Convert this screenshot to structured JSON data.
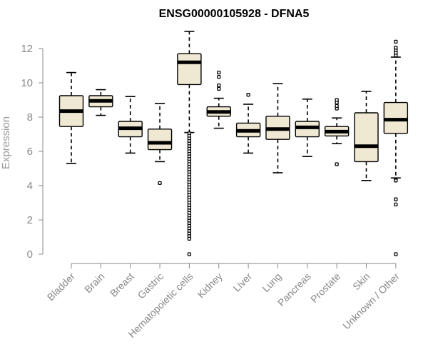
{
  "chart_data": {
    "type": "box",
    "title": "ENSG00000105928 - DFNA5",
    "xlabel": "",
    "ylabel": "Expression",
    "ylim": [
      0,
      12
    ],
    "yticks": [
      0,
      2,
      4,
      6,
      8,
      10,
      12
    ],
    "grid": false,
    "colors": {
      "box_fill": "#efe8d2",
      "box_stroke": "#000000",
      "axis": "#888888"
    },
    "categories": [
      "Bladder",
      "Brain",
      "Breast",
      "Gastric",
      "Hematopoietic cells",
      "Kidney",
      "Liver",
      "Lung",
      "Pancreas",
      "Prostate",
      "Skin",
      "Unknown / Other"
    ],
    "boxes": [
      {
        "name": "Bladder",
        "whisker_low": 5.3,
        "q1": 7.45,
        "median": 8.35,
        "q3": 9.25,
        "whisker_high": 10.6,
        "outliers": []
      },
      {
        "name": "Brain",
        "whisker_low": 8.1,
        "q1": 8.6,
        "median": 8.95,
        "q3": 9.25,
        "whisker_high": 9.6,
        "outliers": []
      },
      {
        "name": "Breast",
        "whisker_low": 5.9,
        "q1": 6.85,
        "median": 7.35,
        "q3": 7.75,
        "whisker_high": 9.2,
        "outliers": []
      },
      {
        "name": "Gastric",
        "whisker_low": 5.4,
        "q1": 6.1,
        "median": 6.5,
        "q3": 7.3,
        "whisker_high": 8.8,
        "outliers": [
          4.15
        ]
      },
      {
        "name": "Hematopoietic cells",
        "whisker_low": 7.1,
        "q1": 9.9,
        "median": 11.2,
        "q3": 11.7,
        "whisker_high": 13.0,
        "outliers": [
          7.05,
          6.9,
          6.75,
          6.6,
          6.45,
          6.3,
          6.15,
          6.0,
          5.85,
          5.7,
          5.55,
          5.4,
          5.25,
          5.1,
          4.95,
          4.8,
          4.65,
          4.5,
          4.35,
          4.2,
          4.05,
          3.9,
          3.75,
          3.6,
          3.45,
          3.3,
          3.15,
          3.0,
          2.85,
          2.7,
          2.55,
          2.4,
          2.25,
          2.1,
          1.95,
          1.8,
          1.65,
          1.5,
          1.35,
          1.2,
          1.05,
          0.9,
          0.0
        ]
      },
      {
        "name": "Kidney",
        "whisker_low": 7.35,
        "q1": 8.05,
        "median": 8.3,
        "q3": 8.6,
        "whisker_high": 9.1,
        "outliers": [
          9.65,
          9.85,
          10.35,
          10.6
        ]
      },
      {
        "name": "Liver",
        "whisker_low": 5.9,
        "q1": 6.85,
        "median": 7.2,
        "q3": 7.65,
        "whisker_high": 8.75,
        "outliers": [
          9.3
        ]
      },
      {
        "name": "Lung",
        "whisker_low": 4.75,
        "q1": 6.7,
        "median": 7.3,
        "q3": 8.05,
        "whisker_high": 9.95,
        "outliers": []
      },
      {
        "name": "Pancreas",
        "whisker_low": 5.7,
        "q1": 6.85,
        "median": 7.4,
        "q3": 7.75,
        "whisker_high": 9.05,
        "outliers": []
      },
      {
        "name": "Prostate",
        "whisker_low": 6.45,
        "q1": 6.9,
        "median": 7.15,
        "q3": 7.45,
        "whisker_high": 7.95,
        "outliers": [
          5.25,
          8.5,
          8.65,
          8.85,
          9.0
        ]
      },
      {
        "name": "Skin",
        "whisker_low": 4.3,
        "q1": 5.4,
        "median": 6.3,
        "q3": 8.25,
        "whisker_high": 9.5,
        "outliers": []
      },
      {
        "name": "Unknown / Other",
        "whisker_low": 4.45,
        "q1": 7.05,
        "median": 7.85,
        "q3": 8.85,
        "whisker_high": 11.5,
        "outliers": [
          11.6,
          11.75,
          11.9,
          12.05,
          12.4,
          4.35,
          4.3,
          3.2,
          2.9,
          0.0
        ]
      }
    ]
  }
}
